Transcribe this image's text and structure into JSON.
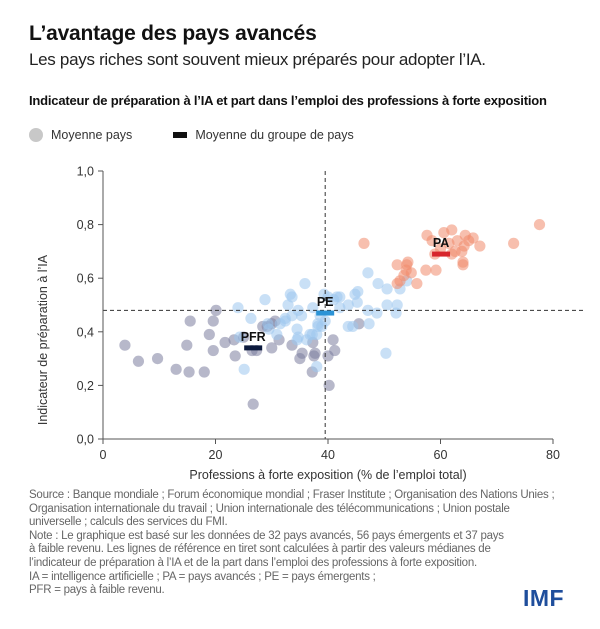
{
  "header": {
    "title": "L’avantage des pays avancés",
    "subtitle": "Les pays riches sont souvent mieux préparés pour adopter l’IA."
  },
  "legend": {
    "items": [
      {
        "label": "Moyenne pays",
        "icon": "circle-icon"
      },
      {
        "label": "Moyenne du groupe de pays",
        "icon": "bar-icon"
      }
    ]
  },
  "colors": {
    "advanced": "#f08a6c",
    "emerging": "#9cc6ee",
    "low_income": "#7b7d9e",
    "advanced_mean": "#d7262c",
    "emerging_mean": "#2b93d6",
    "low_income_mean": "#0c1a3d",
    "axis": "#555555",
    "reference_line": "#333333",
    "logo": "#1f4e9c"
  },
  "chart_data": {
    "type": "scatter",
    "title": "Indicateur de préparation à l’IA et part dans l’emploi des professions à forte exposition",
    "xlabel": "Professions à forte exposition (% de l’emploi total)",
    "ylabel": "Indicateur de préparation à l’IA",
    "xlim": [
      0,
      80
    ],
    "ylim": [
      0,
      1.0
    ],
    "x_ticks": [
      0,
      20,
      40,
      60,
      80
    ],
    "x_tick_labels": [
      "0",
      "20",
      "40",
      "60",
      "80"
    ],
    "y_ticks": [
      0,
      0.2,
      0.4,
      0.6,
      0.8,
      1.0
    ],
    "y_tick_labels": [
      "0,0",
      "0,2",
      "0,4",
      "0,6",
      "0,8",
      "1,0"
    ],
    "grid": false,
    "legend_position": "top-left",
    "reference_lines": {
      "x_median": 39.5,
      "y_median": 0.48
    },
    "series": [
      {
        "name": "PFR",
        "group": "low_income",
        "points": [
          [
            3.9,
            0.35
          ],
          [
            6.3,
            0.29
          ],
          [
            9.7,
            0.3
          ],
          [
            13,
            0.26
          ],
          [
            15.3,
            0.25
          ],
          [
            18,
            0.25
          ],
          [
            14.9,
            0.35
          ],
          [
            15.5,
            0.44
          ],
          [
            18.9,
            0.39
          ],
          [
            19.6,
            0.44
          ],
          [
            20.1,
            0.48
          ],
          [
            19.6,
            0.33
          ],
          [
            21.7,
            0.36
          ],
          [
            23.5,
            0.31
          ],
          [
            23.3,
            0.37
          ],
          [
            26.5,
            0.33
          ],
          [
            28.4,
            0.42
          ],
          [
            30,
            0.43
          ],
          [
            30.6,
            0.44
          ],
          [
            30,
            0.34
          ],
          [
            31.3,
            0.37
          ],
          [
            33.6,
            0.35
          ],
          [
            35.4,
            0.32
          ],
          [
            35,
            0.3
          ],
          [
            37.3,
            0.36
          ],
          [
            37.7,
            0.32
          ],
          [
            37.5,
            0.31
          ],
          [
            37.2,
            0.25
          ],
          [
            40,
            0.31
          ],
          [
            40.9,
            0.37
          ],
          [
            41.2,
            0.33
          ],
          [
            40.2,
            0.2
          ],
          [
            26.7,
            0.13
          ],
          [
            45.5,
            0.43
          ],
          [
            25,
            0.38
          ],
          [
            27.3,
            0.33
          ],
          [
            29.2,
            0.42
          ]
        ],
        "mean": [
          26.7,
          0.34
        ]
      },
      {
        "name": "PE",
        "group": "emerging",
        "points": [
          [
            35.9,
            0.58
          ],
          [
            28.8,
            0.52
          ],
          [
            33.6,
            0.53
          ],
          [
            33.3,
            0.54
          ],
          [
            24,
            0.49
          ],
          [
            32.9,
            0.5
          ],
          [
            34.7,
            0.48
          ],
          [
            33.6,
            0.46
          ],
          [
            32.4,
            0.44
          ],
          [
            31.5,
            0.43
          ],
          [
            34.5,
            0.41
          ],
          [
            29.3,
            0.43
          ],
          [
            30.9,
            0.39
          ],
          [
            34.7,
            0.38
          ],
          [
            37.2,
            0.39
          ],
          [
            38.2,
            0.42
          ],
          [
            38.6,
            0.46
          ],
          [
            25.1,
            0.26
          ],
          [
            47.1,
            0.62
          ],
          [
            48.9,
            0.58
          ],
          [
            50.5,
            0.56
          ],
          [
            52.8,
            0.56
          ],
          [
            54,
            0.59
          ],
          [
            45.3,
            0.55
          ],
          [
            42.1,
            0.53
          ],
          [
            41.6,
            0.53
          ],
          [
            40,
            0.53
          ],
          [
            39.3,
            0.54
          ],
          [
            43.6,
            0.5
          ],
          [
            45.2,
            0.51
          ],
          [
            50.5,
            0.5
          ],
          [
            52.3,
            0.5
          ],
          [
            47.1,
            0.48
          ],
          [
            48.7,
            0.47
          ],
          [
            52.1,
            0.47
          ],
          [
            42.1,
            0.49
          ],
          [
            37.3,
            0.49
          ],
          [
            47.3,
            0.43
          ],
          [
            43.6,
            0.42
          ],
          [
            44.4,
            0.42
          ],
          [
            38.2,
            0.43
          ],
          [
            38.9,
            0.42
          ],
          [
            36.8,
            0.39
          ],
          [
            50.3,
            0.32
          ],
          [
            38,
            0.39
          ],
          [
            38,
            0.27
          ],
          [
            32.4,
            0.45
          ],
          [
            34.5,
            0.37
          ],
          [
            24.3,
            0.38
          ],
          [
            39.5,
            0.44
          ],
          [
            35.3,
            0.46
          ],
          [
            41,
            0.52
          ],
          [
            26.3,
            0.45
          ],
          [
            29.5,
            0.41
          ],
          [
            36.2,
            0.37
          ],
          [
            44.8,
            0.54
          ]
        ],
        "mean": [
          39.5,
          0.47
        ]
      },
      {
        "name": "PA",
        "group": "advanced",
        "points": [
          [
            46.4,
            0.73
          ],
          [
            57.6,
            0.76
          ],
          [
            60.6,
            0.77
          ],
          [
            62,
            0.78
          ],
          [
            64.4,
            0.76
          ],
          [
            65.8,
            0.75
          ],
          [
            65,
            0.74
          ],
          [
            67,
            0.72
          ],
          [
            64.2,
            0.72
          ],
          [
            63.8,
            0.7
          ],
          [
            62.6,
            0.7
          ],
          [
            62,
            0.69
          ],
          [
            64,
            0.66
          ],
          [
            64,
            0.65
          ],
          [
            59,
            0.69
          ],
          [
            73,
            0.73
          ],
          [
            77.6,
            0.8
          ],
          [
            59.2,
            0.63
          ],
          [
            57.4,
            0.63
          ],
          [
            52.3,
            0.65
          ],
          [
            54.2,
            0.66
          ],
          [
            54,
            0.65
          ],
          [
            53.9,
            0.63
          ],
          [
            52.8,
            0.59
          ],
          [
            52.3,
            0.58
          ],
          [
            55.8,
            0.58
          ],
          [
            61.5,
            0.73
          ],
          [
            63,
            0.74
          ],
          [
            58.5,
            0.74
          ],
          [
            60,
            0.71
          ],
          [
            54.8,
            0.62
          ],
          [
            53.5,
            0.61
          ]
        ],
        "mean": [
          60.1,
          0.69
        ]
      }
    ]
  },
  "footnote": {
    "lines": [
      "Source : Banque mondiale ; Forum économique mondial ; Fraser Institute ; Organisation des Nations Unies ;",
      "Organisation internationale du travail ; Union internationale des télécommunications ; Union postale",
      "universelle ; calculs des services du FMI.",
      "Note : Le graphique est basé sur les données de 32 pays avancés, 56 pays émergents et 37 pays",
      "à faible revenu. Les lignes de référence en tiret sont calculées à partir des valeurs médianes de",
      "l’indicateur de préparation à l’IA et de la part dans l’emploi des professions à forte exposition.",
      "IA = intelligence artificielle ; PA = pays avancés ; PE = pays émergents ;",
      "PFR = pays à faible revenu."
    ]
  },
  "logo": {
    "text": "IMF"
  }
}
